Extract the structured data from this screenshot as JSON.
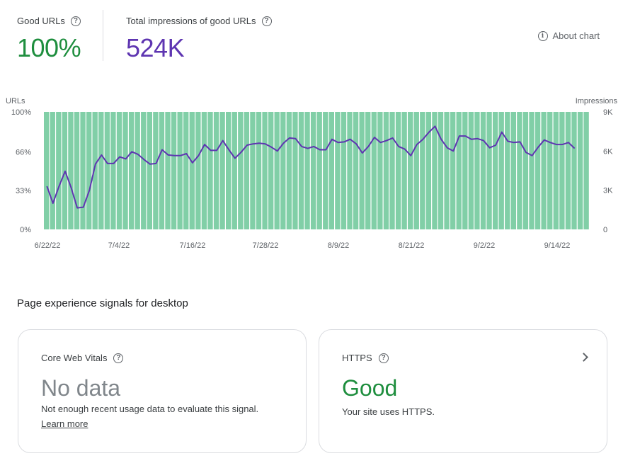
{
  "summary": {
    "good_urls_label": "Good URLs",
    "good_urls_value": "100%",
    "impressions_label": "Total impressions of good URLs",
    "impressions_value": "524K",
    "about_label": "About chart"
  },
  "colors": {
    "good": "#1e8e3e",
    "impressions": "#5e35b1",
    "bars": "#81cfa7"
  },
  "chart_data": {
    "type": "bar",
    "title": "",
    "y_left_label": "URLs",
    "y_right_label": "Impressions",
    "y_left_ticks": [
      "100%",
      "66%",
      "33%",
      "0%"
    ],
    "y_right_ticks": [
      "9K",
      "6K",
      "3K",
      "0"
    ],
    "x_ticks": [
      "6/22/22",
      "7/4/22",
      "7/16/22",
      "7/28/22",
      "8/9/22",
      "8/21/22",
      "9/2/22",
      "9/14/22"
    ],
    "ylim_left": [
      0,
      100
    ],
    "ylim_right": [
      0,
      9000
    ],
    "grid": false,
    "series": [
      {
        "name": "Good URLs",
        "type": "bar",
        "y_axis": "left",
        "values": [
          100,
          100,
          100,
          100,
          100,
          100,
          100,
          100,
          100,
          100,
          100,
          100,
          100,
          100,
          100,
          100,
          100,
          100,
          100,
          100,
          100,
          100,
          100,
          100,
          100,
          100,
          100,
          100,
          100,
          100,
          100,
          100,
          100,
          100,
          100,
          100,
          100,
          100,
          100,
          100,
          100,
          100,
          100,
          100,
          100,
          100,
          100,
          100,
          100,
          100,
          100,
          100,
          100,
          100,
          100,
          100,
          100,
          100,
          100,
          100,
          100,
          100,
          100,
          100,
          100,
          100,
          100,
          100,
          100,
          100,
          100,
          100,
          100,
          100,
          100,
          100,
          100,
          100,
          100,
          100,
          100,
          100,
          100,
          100,
          100,
          100,
          100,
          100,
          100,
          100
        ]
      },
      {
        "name": "Total impressions of good URLs",
        "type": "line",
        "y_axis": "right",
        "values": [
          3300,
          2000,
          3300,
          4450,
          3200,
          1650,
          1700,
          3000,
          5000,
          5700,
          5050,
          5050,
          5550,
          5400,
          5950,
          5750,
          5350,
          5000,
          5050,
          6100,
          5700,
          5650,
          5650,
          5800,
          5100,
          5650,
          6500,
          6050,
          6050,
          6800,
          6100,
          5450,
          5900,
          6450,
          6550,
          6600,
          6550,
          6300,
          6000,
          6600,
          7000,
          6950,
          6350,
          6200,
          6350,
          6100,
          6100,
          6900,
          6650,
          6700,
          6900,
          6550,
          5850,
          6350,
          7050,
          6650,
          6800,
          7000,
          6350,
          6150,
          5650,
          6500,
          6900,
          7450,
          7900,
          6900,
          6250,
          6000,
          7150,
          7150,
          6900,
          6950,
          6800,
          6250,
          6450,
          7450,
          6750,
          6650,
          6700,
          5900,
          5650,
          6300,
          6850,
          6650,
          6500,
          6500,
          6650,
          6200
        ]
      }
    ]
  },
  "section": {
    "title": "Page experience signals for desktop"
  },
  "cards": [
    {
      "title": "Core Web Vitals",
      "status": "No data",
      "description": "Not enough recent usage data to evaluate this signal.",
      "link": "Learn more"
    },
    {
      "title": "HTTPS",
      "status": "Good",
      "description": "Your site uses HTTPS."
    }
  ]
}
